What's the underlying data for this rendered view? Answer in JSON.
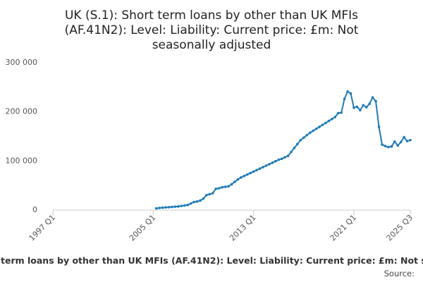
{
  "chart_data": {
    "type": "line",
    "title": [
      "UK (S.1): Short term loans by other than UK MFIs",
      "(AF.41N2): Level: Liability: Current price: £m: Not",
      "seasonally adjusted"
    ],
    "caption": "term loans by other than UK MFIs (AF.41N2): Level: Liability: Current price: £m: Not se",
    "source": "Source:",
    "x": [
      2005.25,
      2005.5,
      2005.75,
      2006,
      2006.25,
      2006.5,
      2006.75,
      2007,
      2007.25,
      2007.5,
      2007.75,
      2008,
      2008.25,
      2008.5,
      2008.75,
      2009,
      2009.25,
      2009.5,
      2009.75,
      2010,
      2010.25,
      2010.5,
      2010.75,
      2011,
      2011.25,
      2011.5,
      2011.75,
      2012,
      2012.25,
      2012.5,
      2012.75,
      2013,
      2013.25,
      2013.5,
      2013.75,
      2014,
      2014.25,
      2014.5,
      2014.75,
      2015,
      2015.25,
      2015.5,
      2015.75,
      2016,
      2016.25,
      2016.5,
      2016.75,
      2017,
      2017.25,
      2017.5,
      2017.75,
      2018,
      2018.25,
      2018.5,
      2018.75,
      2019,
      2019.25,
      2019.5,
      2019.75,
      2020,
      2020.25,
      2020.5,
      2020.75,
      2021,
      2021.25,
      2021.5,
      2021.75,
      2022,
      2022.25,
      2022.5,
      2022.75,
      2023,
      2023.25,
      2023.5,
      2023.75,
      2024,
      2024.25,
      2024.5,
      2024.75,
      2025,
      2025.25,
      2025.5
    ],
    "series": [
      {
        "name": "AF.41N2",
        "color": "#1f7cb8",
        "values": [
          2000,
          3000,
          3500,
          4000,
          4500,
          5000,
          5500,
          6000,
          7000,
          8000,
          9000,
          12000,
          15000,
          16000,
          18000,
          22000,
          29000,
          31000,
          33000,
          42000,
          43000,
          45000,
          46000,
          47000,
          51000,
          56000,
          61000,
          65000,
          68000,
          71000,
          74000,
          77000,
          80000,
          83000,
          86000,
          89000,
          92000,
          95000,
          98000,
          101000,
          103000,
          106000,
          109000,
          117000,
          125000,
          133000,
          141000,
          146000,
          151000,
          156000,
          160000,
          164000,
          168000,
          172000,
          176000,
          180000,
          184000,
          188000,
          196000,
          197000,
          225000,
          240000,
          236000,
          207000,
          209000,
          202000,
          212000,
          208000,
          215000,
          228000,
          220000,
          168000,
          132000,
          129000,
          127000,
          128000,
          138000,
          130000,
          137000,
          147000,
          139000,
          141000
        ]
      }
    ],
    "xlim": [
      1997,
      2025.5
    ],
    "xticks": [
      {
        "value": 1997,
        "label": "1997 Q1"
      },
      {
        "value": 2005,
        "label": "2005 Q1"
      },
      {
        "value": 2013,
        "label": "2013 Q1"
      },
      {
        "value": 2021,
        "label": "2021 Q1"
      },
      {
        "value": 2025.5,
        "label": "2025 Q3"
      }
    ],
    "ylim": [
      0,
      300000
    ],
    "yticks": [
      0,
      {
        "value": 100000,
        "label": "100 000"
      },
      {
        "value": 200000,
        "label": "200 000"
      },
      {
        "value": 300000,
        "label": "300 000"
      }
    ],
    "grid": false
  }
}
